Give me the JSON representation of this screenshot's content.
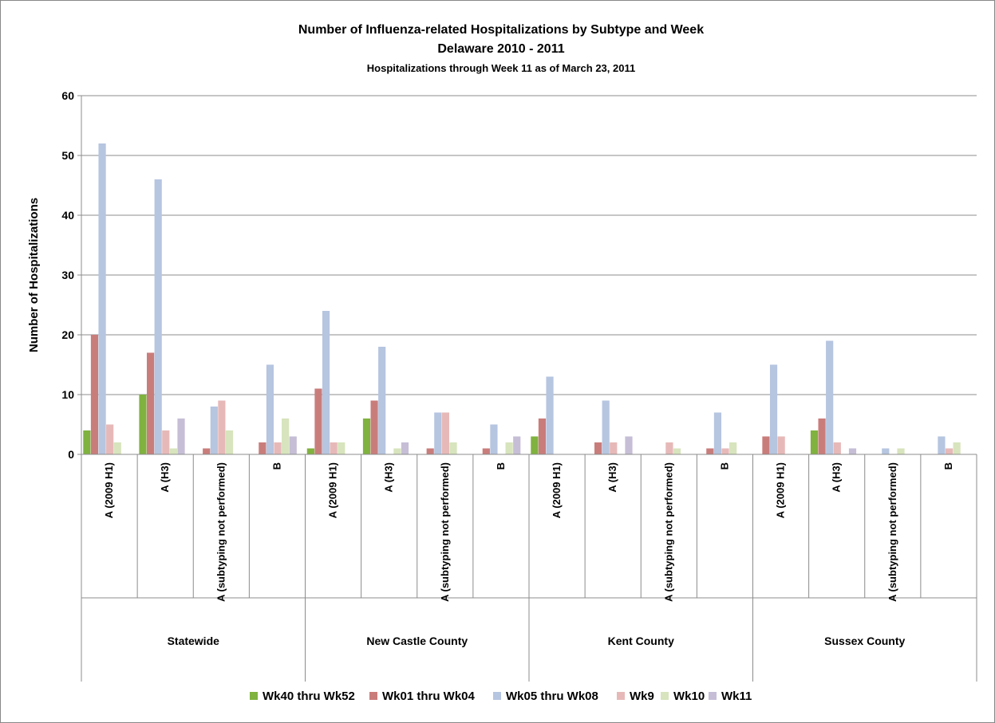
{
  "chart_data": {
    "type": "bar",
    "title": "Number of Influenza-related Hospitalizations by Subtype and Week",
    "subtitle": "Delaware 2010 - 2011",
    "subtitle2": "Hospitalizations  through Week 11 as of March 23, 2011",
    "ylabel": "Number of Hospitalizations",
    "ylim": [
      0,
      60
    ],
    "yticks": [
      0,
      10,
      20,
      30,
      40,
      50,
      60
    ],
    "grid": true,
    "legend_position": "bottom",
    "groups": [
      {
        "name": "Statewide",
        "categories": [
          "A (2009 H1)",
          "A (H3)",
          "A (subtyping not performed)",
          "B"
        ]
      },
      {
        "name": "New Castle County",
        "categories": [
          "A (2009 H1)",
          "A (H3)",
          "A (subtyping not performed)",
          "B"
        ]
      },
      {
        "name": "Kent County",
        "categories": [
          "A (2009 H1)",
          "A (H3)",
          "A (subtyping not performed)",
          "B"
        ]
      },
      {
        "name": "Sussex County",
        "categories": [
          "A (2009 H1)",
          "A (H3)",
          "A (subtyping not performed)",
          "B"
        ]
      }
    ],
    "series": [
      {
        "name": "Wk40 thru Wk52",
        "color": "#7fb23f",
        "values": [
          4,
          10,
          0,
          0,
          1,
          6,
          0,
          0,
          3,
          0,
          0,
          0,
          0,
          4,
          0,
          0
        ]
      },
      {
        "name": "Wk01 thru Wk04",
        "color": "#c97d7b",
        "values": [
          20,
          17,
          1,
          2,
          11,
          9,
          1,
          1,
          6,
          2,
          0,
          1,
          3,
          6,
          0,
          0
        ]
      },
      {
        "name": "Wk05 thru Wk08",
        "color": "#b6c5e0",
        "values": [
          52,
          46,
          8,
          15,
          24,
          18,
          7,
          5,
          13,
          9,
          0,
          7,
          15,
          19,
          1,
          3
        ]
      },
      {
        "name": "Wk9",
        "color": "#e6b9b8",
        "values": [
          5,
          4,
          9,
          2,
          2,
          0,
          7,
          0,
          0,
          2,
          2,
          1,
          3,
          2,
          0,
          1
        ]
      },
      {
        "name": "Wk10",
        "color": "#d7e4bd",
        "values": [
          2,
          1,
          4,
          6,
          2,
          1,
          2,
          2,
          0,
          0,
          1,
          2,
          0,
          0,
          1,
          2
        ]
      },
      {
        "name": "Wk11",
        "color": "#c6bed6",
        "values": [
          0,
          6,
          0,
          3,
          0,
          2,
          0,
          3,
          0,
          3,
          0,
          0,
          0,
          1,
          0,
          0
        ]
      }
    ]
  }
}
